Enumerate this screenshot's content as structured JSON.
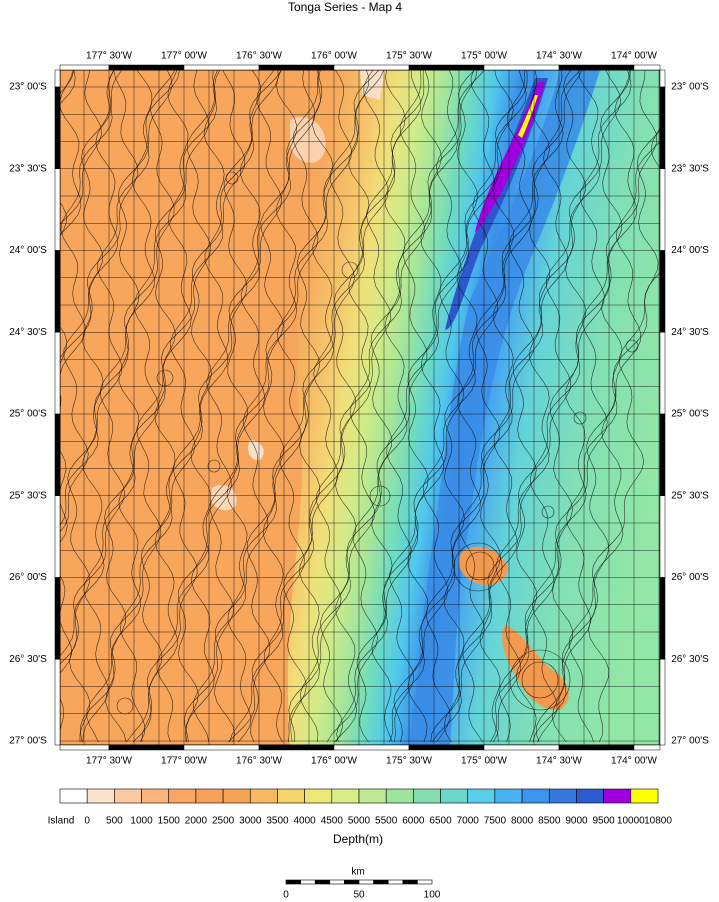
{
  "title": "Tonga Series - Map 4",
  "map": {
    "longitude_labels": [
      "177° 30'W",
      "177° 00'W",
      "176° 30'W",
      "176° 00'W",
      "175° 30'W",
      "175° 00'W",
      "174° 30'W",
      "174° 00'W"
    ],
    "latitude_labels": [
      "23° 00'S",
      "23° 30'S",
      "24° 00'S",
      "24° 30'S",
      "25° 00'S",
      "25° 30'S",
      "26° 00'S",
      "26° 30'S",
      "27° 00'S"
    ]
  },
  "legend": {
    "title": "Depth(m)",
    "labels": [
      "Island",
      "0",
      "500",
      "1000",
      "1500",
      "2000",
      "2500",
      "3000",
      "3500",
      "4000",
      "4500",
      "5000",
      "5500",
      "6000",
      "6500",
      "7000",
      "7500",
      "8000",
      "8500",
      "9000",
      "9500",
      "10000",
      "10800"
    ],
    "colors": [
      "#ffffff",
      "#fde3cc",
      "#fcc9a0",
      "#fbb47c",
      "#f9a564",
      "#f8a058",
      "#f7a355",
      "#f6b860",
      "#f5d46c",
      "#eee878",
      "#d8ee88",
      "#bdea92",
      "#9fe49c",
      "#84deb0",
      "#6cd8cc",
      "#58d0ec",
      "#48b4f4",
      "#3c94ec",
      "#3478e0",
      "#2c5cd0",
      "#a000e0",
      "#ffff00"
    ]
  },
  "scale_bar": {
    "unit": "km",
    "labels": [
      "0",
      "50",
      "100"
    ]
  }
}
